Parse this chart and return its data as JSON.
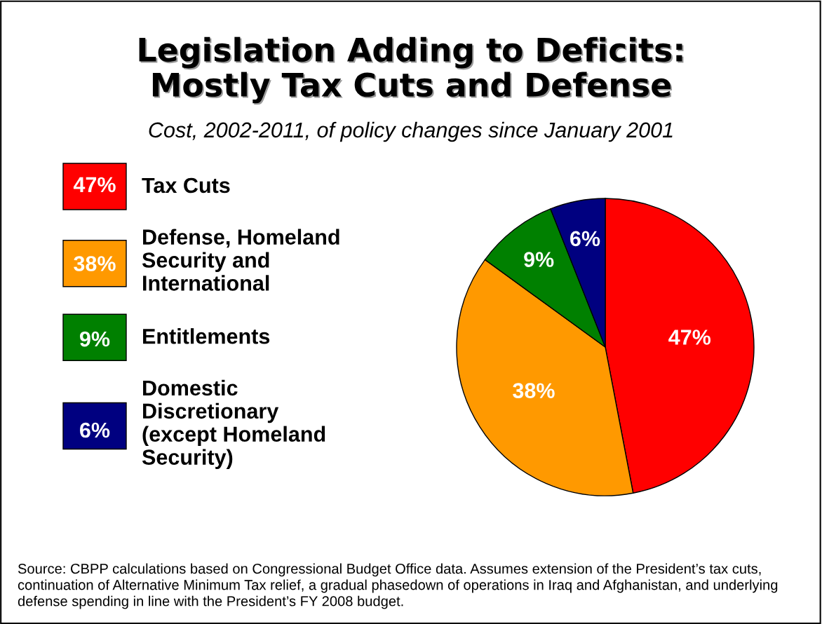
{
  "chart_data": {
    "type": "pie",
    "title": "Legislation Adding to Deficits:\nMostly Tax Cuts and Defense",
    "subtitle": "Cost, 2002-2011, of policy changes since January 2001",
    "categories": [
      "Tax Cuts",
      "Defense, Homeland\nSecurity and\nInternational",
      "Entitlements",
      "Domestic\nDiscretionary\n(except Homeland\nSecurity)"
    ],
    "values": [
      47,
      38,
      9,
      6
    ],
    "colors": [
      "#ff0000",
      "#ff9900",
      "#008000",
      "#000080"
    ],
    "data_labels": true,
    "value_labels": [
      "47%",
      "38%",
      "9%",
      "6%"
    ],
    "legend": "left",
    "annotations": [
      "Source: CBPP calculations based on Congressional Budget Office data. Assumes extension of the President’s tax cuts, continuation of Alternative Minimum Tax relief, a gradual phasedown of operations in Iraq and Afghanistan, and underlying defense spending in line with the President’s FY 2008 budget."
    ]
  }
}
